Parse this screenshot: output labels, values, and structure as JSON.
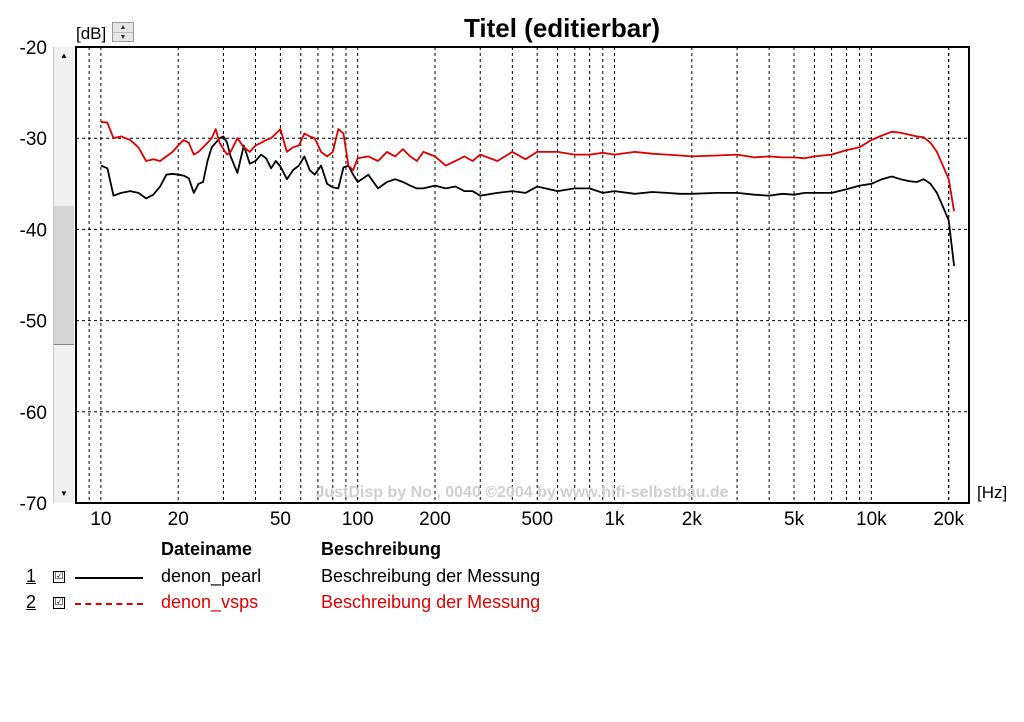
{
  "chart_data": {
    "type": "line",
    "title": "Titel (editierbar)",
    "ylabel": "[dB]",
    "xlabel": "[Hz]",
    "xscale": "log",
    "xlim": [
      8,
      24000
    ],
    "ylim": [
      -70,
      -20
    ],
    "grid": true,
    "y_ticks": [
      "-20",
      "-30",
      "-40",
      "-50",
      "-60",
      "-70"
    ],
    "x_ticks": [
      "10",
      "20",
      "50",
      "100",
      "200",
      "500",
      "1k",
      "2k",
      "5k",
      "10k",
      "20k"
    ],
    "x_tick_values": [
      10,
      20,
      50,
      100,
      200,
      500,
      1000,
      2000,
      5000,
      10000,
      20000
    ],
    "watermark": "JustDisp by No , 0040 ©2004 by www.hifi-selbstbau.de",
    "series": [
      {
        "name": "denon_pearl",
        "color": "#000000",
        "dash": "solid",
        "x": [
          10,
          10.6,
          11.2,
          12,
          13,
          14,
          15,
          16,
          17,
          18,
          19,
          20,
          21,
          22,
          23,
          24,
          25,
          26,
          27,
          28,
          29,
          30,
          31,
          32,
          34,
          36,
          38,
          40,
          42,
          44,
          46,
          48,
          50,
          53,
          56,
          59,
          62,
          65,
          68,
          72,
          76,
          80,
          84,
          88,
          92,
          96,
          100,
          110,
          120,
          130,
          140,
          150,
          160,
          170,
          180,
          200,
          220,
          240,
          260,
          280,
          300,
          350,
          400,
          450,
          500,
          600,
          700,
          800,
          900,
          1000,
          1200,
          1400,
          1600,
          1800,
          2000,
          2500,
          3000,
          3500,
          4000,
          4500,
          5000,
          5500,
          6000,
          7000,
          8000,
          9000,
          10000,
          11000,
          12000,
          13000,
          14000,
          15000,
          16000,
          17000,
          18000,
          19000,
          20000,
          21000
        ],
        "values": [
          -33.0,
          -33.3,
          -36.3,
          -36.0,
          -35.8,
          -36.0,
          -36.6,
          -36.2,
          -35.3,
          -34.0,
          -33.9,
          -34.0,
          -34.1,
          -34.4,
          -36.0,
          -35.0,
          -34.8,
          -32.5,
          -31.0,
          -30.5,
          -30.0,
          -29.8,
          -30.5,
          -32.0,
          -33.8,
          -30.8,
          -32.8,
          -32.5,
          -31.8,
          -32.2,
          -33.3,
          -32.5,
          -33.1,
          -34.5,
          -33.5,
          -33.0,
          -32.0,
          -33.5,
          -34.0,
          -33.0,
          -35.0,
          -35.4,
          -35.5,
          -33.2,
          -33.0,
          -34.0,
          -34.8,
          -34.0,
          -35.5,
          -34.8,
          -34.5,
          -34.8,
          -35.2,
          -35.5,
          -35.5,
          -35.2,
          -35.5,
          -35.3,
          -35.8,
          -35.8,
          -36.3,
          -36.0,
          -35.8,
          -36.0,
          -35.3,
          -35.8,
          -35.5,
          -35.5,
          -36.0,
          -35.8,
          -36.1,
          -35.9,
          -36.0,
          -36.1,
          -36.1,
          -36.0,
          -36.0,
          -36.2,
          -36.3,
          -36.1,
          -36.2,
          -36.0,
          -36.0,
          -36.0,
          -35.6,
          -35.2,
          -35.0,
          -34.5,
          -34.2,
          -34.5,
          -34.7,
          -34.8,
          -34.5,
          -35.0,
          -36.0,
          -37.5,
          -39.0,
          -44.0
        ]
      },
      {
        "name": "denon_vsps",
        "color": "#dd0000",
        "dash": "dashed",
        "x": [
          10,
          10.6,
          11.2,
          12,
          13,
          14,
          15,
          16,
          17,
          18,
          19,
          20,
          21,
          22,
          23,
          24,
          25,
          26,
          27,
          28,
          29,
          30,
          31,
          32,
          34,
          36,
          38,
          40,
          42,
          44,
          46,
          48,
          50,
          53,
          56,
          59,
          62,
          65,
          68,
          72,
          76,
          80,
          84,
          88,
          92,
          96,
          100,
          110,
          120,
          130,
          140,
          150,
          160,
          170,
          180,
          200,
          220,
          240,
          260,
          280,
          300,
          350,
          400,
          450,
          500,
          600,
          700,
          800,
          900,
          1000,
          1200,
          1400,
          1600,
          1800,
          2000,
          2500,
          3000,
          3500,
          4000,
          4500,
          5000,
          5500,
          6000,
          7000,
          8000,
          9000,
          10000,
          11000,
          12000,
          13000,
          14000,
          15000,
          16000,
          17000,
          18000,
          19000,
          20000,
          21000
        ],
        "values": [
          -28.2,
          -28.3,
          -30.0,
          -29.8,
          -30.2,
          -31.0,
          -32.5,
          -32.3,
          -32.5,
          -32.0,
          -31.5,
          -30.8,
          -30.2,
          -30.5,
          -31.8,
          -31.5,
          -31.0,
          -30.5,
          -30.0,
          -29.0,
          -30.5,
          -31.2,
          -31.8,
          -31.5,
          -30.0,
          -31.0,
          -31.5,
          -30.8,
          -30.5,
          -30.2,
          -30.0,
          -29.5,
          -29.0,
          -31.5,
          -31.0,
          -30.8,
          -29.5,
          -29.8,
          -30.0,
          -31.5,
          -32.0,
          -31.5,
          -29.0,
          -29.5,
          -33.0,
          -33.5,
          -32.2,
          -32.0,
          -32.5,
          -31.5,
          -32.0,
          -31.2,
          -32.0,
          -32.5,
          -31.5,
          -32.0,
          -33.0,
          -32.5,
          -32.0,
          -32.5,
          -31.8,
          -32.5,
          -31.5,
          -32.3,
          -31.5,
          -31.5,
          -31.8,
          -31.8,
          -31.6,
          -31.8,
          -31.5,
          -31.7,
          -31.8,
          -31.9,
          -32.0,
          -31.9,
          -31.8,
          -32.1,
          -32.0,
          -32.1,
          -32.1,
          -32.2,
          -32.0,
          -31.8,
          -31.3,
          -31.0,
          -30.2,
          -29.7,
          -29.3,
          -29.4,
          -29.6,
          -29.8,
          -29.9,
          -30.5,
          -31.5,
          -33.0,
          -34.5,
          -38.0
        ]
      }
    ]
  },
  "legend": {
    "col_filename": "Dateiname",
    "col_description": "Beschreibung",
    "rows": [
      {
        "num": "1",
        "check": "☑",
        "filename": "denon_pearl",
        "description": "Beschreibung der Messung",
        "color": "#000000"
      },
      {
        "num": "2",
        "check": "☑",
        "filename": "denon_vsps",
        "description": "Beschreibung der Messung",
        "color": "#dd0000"
      }
    ]
  },
  "controls": {
    "spin_up": "▲",
    "spin_down": "▼",
    "scroll_up": "▲",
    "scroll_down": "▼"
  }
}
